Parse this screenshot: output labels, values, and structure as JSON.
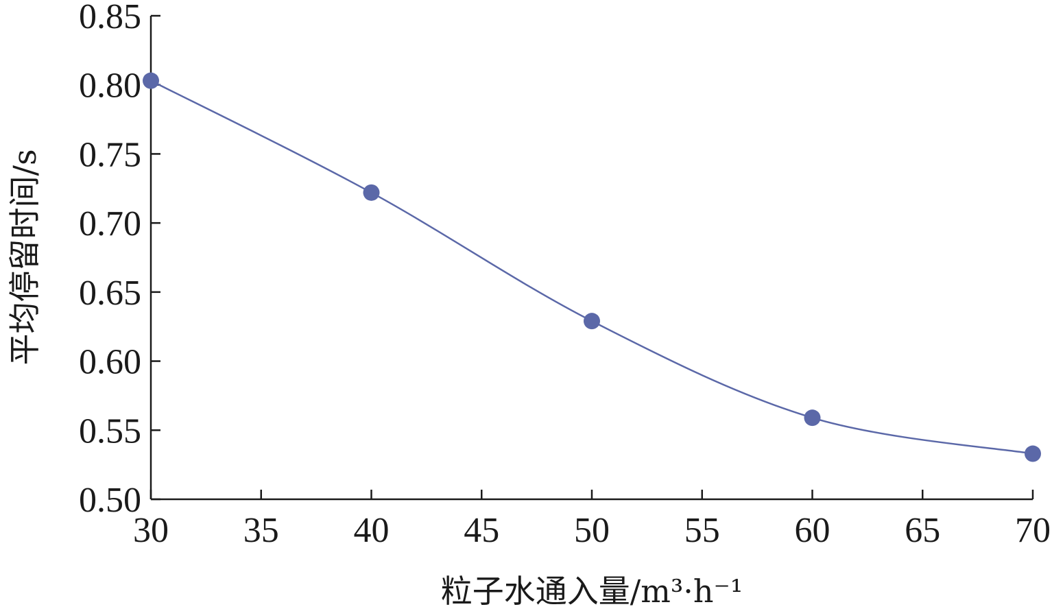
{
  "chart_data": {
    "type": "line",
    "title": "",
    "xlabel": "粒子水通入量/m³·h⁻¹",
    "ylabel": "平均停留时间/s",
    "xlim": [
      30,
      70
    ],
    "ylim": [
      0.5,
      0.85
    ],
    "x_ticks": [
      "30",
      "35",
      "40",
      "45",
      "50",
      "55",
      "60",
      "65",
      "70"
    ],
    "y_ticks": [
      "0.50",
      "0.55",
      "0.60",
      "0.65",
      "0.70",
      "0.75",
      "0.80",
      "0.85"
    ],
    "grid": false,
    "smooth": true,
    "series": [
      {
        "x": [
          30,
          40,
          50,
          60,
          70
        ],
        "values": [
          0.803,
          0.722,
          0.629,
          0.559,
          0.533
        ],
        "color": "#5b68a8"
      }
    ]
  }
}
